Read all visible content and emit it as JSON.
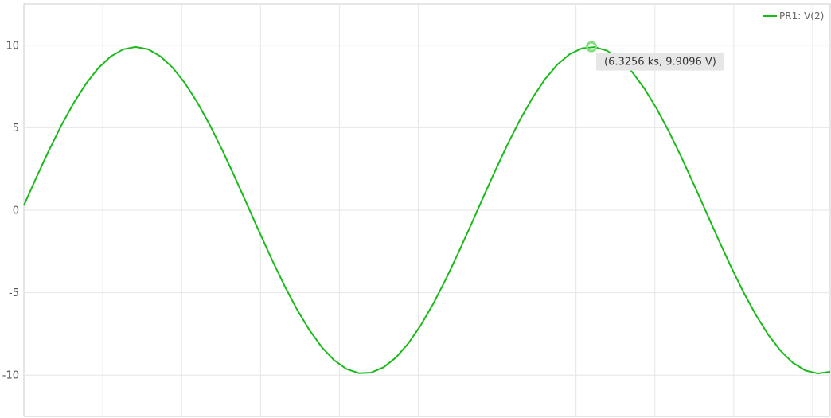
{
  "chart_data": {
    "type": "line",
    "title": "",
    "xlabel": "",
    "ylabel": "",
    "ylim": [
      -12.5,
      12.5
    ],
    "xlim": [
      -0.15,
      9.05
    ],
    "x_unit": "ks",
    "y_unit": "V",
    "grid": true,
    "legend_position": "top-right",
    "y_ticks": [
      10,
      5,
      0,
      -5,
      -10
    ],
    "y_tick_labels": [
      "10",
      "5",
      "0",
      "-5",
      "-10"
    ],
    "x_gridlines": [
      0.75,
      1.65,
      2.55,
      3.45,
      4.35,
      5.25,
      6.15,
      7.05,
      7.95,
      8.85
    ],
    "series": [
      {
        "name": "PR1: V(2)",
        "color": "#1aba1a",
        "amplitude": 9.9,
        "period": 5.2,
        "phase": 0.0,
        "x_start": -0.15,
        "x_end": 9.05,
        "samples": 65
      }
    ],
    "marker": {
      "x": 6.3256,
      "y": 9.9096,
      "label": "(6.3256 ks, 9.9096 V)",
      "color": "#7fe07f"
    }
  }
}
